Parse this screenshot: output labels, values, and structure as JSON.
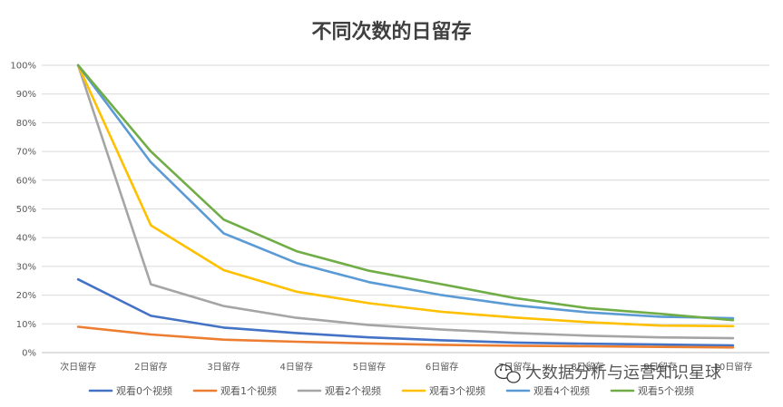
{
  "chart_data": {
    "type": "line",
    "title": "不同次数的日留存",
    "xlabel": "",
    "ylabel": "",
    "categories": [
      "次日留存",
      "2日留存",
      "3日留存",
      "4日留存",
      "5日留存",
      "6日留存",
      "7日留存",
      "8日留存",
      "9日留存",
      "10日留存"
    ],
    "ylim": [
      0,
      100
    ],
    "yticks": [
      "0%",
      "10%",
      "20%",
      "30%",
      "40%",
      "50%",
      "60%",
      "70%",
      "80%",
      "90%",
      "100%"
    ],
    "grid": true,
    "legend_position": "bottom",
    "series": [
      {
        "name": "观看0个视频",
        "color": "#4472C4",
        "values": [
          25.5,
          12.8,
          8.7,
          6.8,
          5.3,
          4.3,
          3.5,
          3.1,
          2.8,
          2.5
        ]
      },
      {
        "name": "观看1个视频",
        "color": "#ED7D31",
        "values": [
          9.0,
          6.3,
          4.5,
          3.8,
          3.2,
          2.7,
          2.4,
          2.2,
          2.0,
          1.8
        ]
      },
      {
        "name": "观看2个视频",
        "color": "#A5A5A5",
        "values": [
          100,
          23.8,
          16.2,
          12.1,
          9.6,
          8.0,
          6.8,
          5.9,
          5.3,
          5.0
        ]
      },
      {
        "name": "观看3个视频",
        "color": "#FFC000",
        "values": [
          100,
          44.3,
          28.7,
          21.2,
          17.2,
          14.2,
          12.2,
          10.6,
          9.4,
          9.2
        ]
      },
      {
        "name": "观看4个视频",
        "color": "#5B9BD5",
        "values": [
          100,
          66.2,
          41.5,
          31.2,
          24.5,
          20.0,
          16.5,
          14.0,
          12.5,
          12.0
        ]
      },
      {
        "name": "观看5个视频",
        "color": "#70AD47",
        "values": [
          100,
          70.0,
          46.3,
          35.3,
          28.5,
          23.8,
          19.0,
          15.5,
          13.5,
          11.3
        ]
      }
    ]
  },
  "watermark": {
    "text": "大数据分析与运营知识星球",
    "icon": "wechat-icon"
  }
}
